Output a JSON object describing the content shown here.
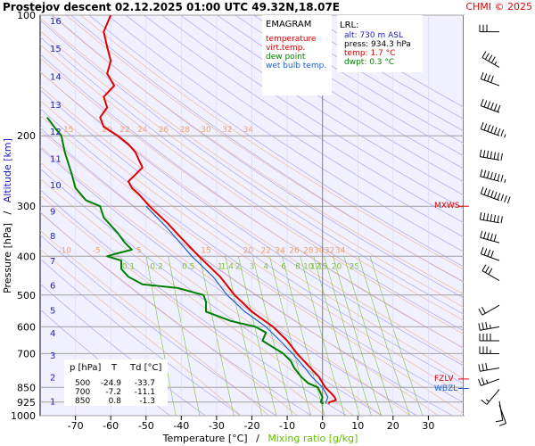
{
  "header": {
    "title": "Prostejov   descent   02.12.2025 01:00 UTC  49.32N,18.07E",
    "copyright": "CHMI © 2025"
  },
  "legend": {
    "title": "EMAGRAM",
    "items": [
      {
        "label": "temperature",
        "color": "#e00000"
      },
      {
        "label": "virt.temp.",
        "color": "#e00000"
      },
      {
        "label": "dew point",
        "color": "#008000"
      },
      {
        "label": "wet bulb temp.",
        "color": "#2060d0"
      }
    ]
  },
  "lrl": {
    "title": "LRL:",
    "lines": [
      {
        "text": "alt: 730 m ASL",
        "color": "#2020c0"
      },
      {
        "text": "press: 934.3 hPa",
        "color": "#000000"
      },
      {
        "text": "temp: 1.7 °C",
        "color": "#e00000"
      },
      {
        "text": "dwpt: 0.3 °C",
        "color": "#008000"
      }
    ]
  },
  "table": {
    "headers": [
      "p [hPa]",
      "T",
      "Td [°C]"
    ],
    "rows": [
      [
        "500",
        "-24.9",
        "-33.7"
      ],
      [
        "700",
        "-7.2",
        "-11.1"
      ],
      [
        "850",
        "0.8",
        "-1.3"
      ]
    ]
  },
  "labels": {
    "mxws": "MXWS",
    "fzlv": "FZLV",
    "wbzl": "WBZL"
  },
  "chart_data": {
    "type": "line",
    "xlabel": "Temperature [°C]",
    "xlabel_sep": "/",
    "xlabel2": "Mixing ratio [g/kg]",
    "ylabel": "Pressure [hPa]",
    "ylabel_sep": "/",
    "ylabel2": "Altitude [km]",
    "xlim": [
      -80,
      40
    ],
    "ylim": [
      1000,
      100
    ],
    "y_scale": "log",
    "x_ticks": [
      -70,
      -60,
      -50,
      -40,
      -30,
      -20,
      -10,
      0,
      10,
      20,
      30
    ],
    "p_ticks": [
      100,
      200,
      300,
      400,
      500,
      600,
      700,
      850,
      925,
      1000
    ],
    "p_tick_labels": [
      "100",
      "200",
      "300",
      "400",
      "500",
      "600",
      "700",
      "850",
      "925",
      "1000"
    ],
    "alt_ticks": [
      {
        "p": 920,
        "label": "1"
      },
      {
        "p": 800,
        "label": "2"
      },
      {
        "p": 705,
        "label": "3"
      },
      {
        "p": 620,
        "label": "4"
      },
      {
        "p": 545,
        "label": "5"
      },
      {
        "p": 472,
        "label": "6"
      },
      {
        "p": 410,
        "label": "7"
      },
      {
        "p": 355,
        "label": "8"
      },
      {
        "p": 308,
        "label": "9"
      },
      {
        "p": 265,
        "label": "10"
      },
      {
        "p": 228,
        "label": "11"
      },
      {
        "p": 195,
        "label": "12"
      },
      {
        "p": 167,
        "label": "13"
      },
      {
        "p": 142,
        "label": "14"
      },
      {
        "p": 121,
        "label": "15"
      },
      {
        "p": 103,
        "label": "16"
      }
    ],
    "mixing_ratio_labels": [
      "0.1",
      "0.2",
      "0.5",
      "1",
      "1.4",
      "2",
      "3",
      "4",
      "6",
      "8",
      "10",
      "12",
      "15",
      "20",
      "25"
    ],
    "isotherm_labels_200": [
      "15",
      "20",
      "22",
      "24",
      "26",
      "28",
      "30",
      "32",
      "34"
    ],
    "isotherm_labels_400": [
      "-10",
      "-5",
      "5",
      "15",
      "20",
      "22",
      "24",
      "26",
      "28",
      "30",
      "32",
      "34"
    ],
    "special_levels": [
      {
        "name": "MXWS",
        "p": 300
      },
      {
        "name": "FZLV",
        "p": 810
      },
      {
        "name": "WBZL",
        "p": 855
      }
    ],
    "series": [
      {
        "name": "temperature",
        "color": "#e00000",
        "points": [
          [
            100,
            -60
          ],
          [
            110,
            -62
          ],
          [
            120,
            -61
          ],
          [
            130,
            -60
          ],
          [
            140,
            -61
          ],
          [
            150,
            -59
          ],
          [
            160,
            -62
          ],
          [
            170,
            -61
          ],
          [
            180,
            -63
          ],
          [
            190,
            -62
          ],
          [
            200,
            -58
          ],
          [
            210,
            -55
          ],
          [
            220,
            -53
          ],
          [
            230,
            -52
          ],
          [
            240,
            -51
          ],
          [
            250,
            -53
          ],
          [
            260,
            -55
          ],
          [
            270,
            -54
          ],
          [
            280,
            -52
          ],
          [
            300,
            -49
          ],
          [
            330,
            -44
          ],
          [
            360,
            -40
          ],
          [
            400,
            -35
          ],
          [
            450,
            -29
          ],
          [
            500,
            -24.9
          ],
          [
            550,
            -20
          ],
          [
            600,
            -14
          ],
          [
            650,
            -10
          ],
          [
            700,
            -7.2
          ],
          [
            750,
            -4
          ],
          [
            800,
            -1
          ],
          [
            850,
            0.8
          ],
          [
            880,
            2.5
          ],
          [
            900,
            3.5
          ],
          [
            915,
            3.8
          ],
          [
            925,
            2
          ],
          [
            934.3,
            1.7
          ]
        ]
      },
      {
        "name": "dew point",
        "color": "#008000",
        "points": [
          [
            180,
            -78
          ],
          [
            190,
            -76
          ],
          [
            200,
            -74
          ],
          [
            220,
            -73
          ],
          [
            250,
            -71
          ],
          [
            270,
            -70
          ],
          [
            290,
            -67
          ],
          [
            300,
            -63
          ],
          [
            320,
            -62
          ],
          [
            350,
            -58
          ],
          [
            370,
            -56
          ],
          [
            385,
            -54
          ],
          [
            395,
            -59
          ],
          [
            400,
            -61
          ],
          [
            410,
            -57
          ],
          [
            430,
            -57
          ],
          [
            450,
            -55
          ],
          [
            470,
            -51
          ],
          [
            480,
            -41
          ],
          [
            500,
            -33.7
          ],
          [
            520,
            -33
          ],
          [
            550,
            -33
          ],
          [
            580,
            -26
          ],
          [
            600,
            -19
          ],
          [
            620,
            -16
          ],
          [
            650,
            -17
          ],
          [
            700,
            -11.1
          ],
          [
            730,
            -9
          ],
          [
            760,
            -8
          ],
          [
            800,
            -6
          ],
          [
            830,
            -4
          ],
          [
            850,
            -1.3
          ],
          [
            880,
            -0.5
          ],
          [
            900,
            0
          ],
          [
            925,
            -0.5
          ],
          [
            934.3,
            0.3
          ]
        ]
      },
      {
        "name": "wet bulb temp.",
        "color": "#2060d0",
        "points": [
          [
            300,
            -50
          ],
          [
            340,
            -44
          ],
          [
            400,
            -37
          ],
          [
            450,
            -31
          ],
          [
            500,
            -27
          ],
          [
            550,
            -22
          ],
          [
            600,
            -16
          ],
          [
            650,
            -12
          ],
          [
            700,
            -8.5
          ],
          [
            750,
            -5.5
          ],
          [
            800,
            -3
          ],
          [
            850,
            0
          ],
          [
            880,
            1
          ],
          [
            900,
            1.5
          ],
          [
            925,
            1
          ],
          [
            934.3,
            1
          ]
        ]
      }
    ],
    "winds": [
      {
        "p": 110,
        "dir": 270,
        "kt": 30
      },
      {
        "p": 135,
        "dir": 300,
        "kt": 45
      },
      {
        "p": 150,
        "dir": 290,
        "kt": 40
      },
      {
        "p": 175,
        "dir": 290,
        "kt": 60
      },
      {
        "p": 200,
        "dir": 290,
        "kt": 75
      },
      {
        "p": 230,
        "dir": 280,
        "kt": 70
      },
      {
        "p": 260,
        "dir": 285,
        "kt": 75
      },
      {
        "p": 290,
        "dir": 290,
        "kt": 90
      },
      {
        "p": 330,
        "dir": 280,
        "kt": 70
      },
      {
        "p": 370,
        "dir": 285,
        "kt": 50
      },
      {
        "p": 410,
        "dir": 290,
        "kt": 40
      },
      {
        "p": 460,
        "dir": 300,
        "kt": 30
      },
      {
        "p": 530,
        "dir": 240,
        "kt": 20
      },
      {
        "p": 600,
        "dir": 260,
        "kt": 35
      },
      {
        "p": 650,
        "dir": 270,
        "kt": 40
      },
      {
        "p": 700,
        "dir": 270,
        "kt": 35
      },
      {
        "p": 760,
        "dir": 260,
        "kt": 30
      },
      {
        "p": 810,
        "dir": 250,
        "kt": 25
      },
      {
        "p": 860,
        "dir": 220,
        "kt": 15
      },
      {
        "p": 920,
        "dir": 170,
        "kt": 10
      },
      {
        "p": 940,
        "dir": 160,
        "kt": 10
      }
    ]
  }
}
